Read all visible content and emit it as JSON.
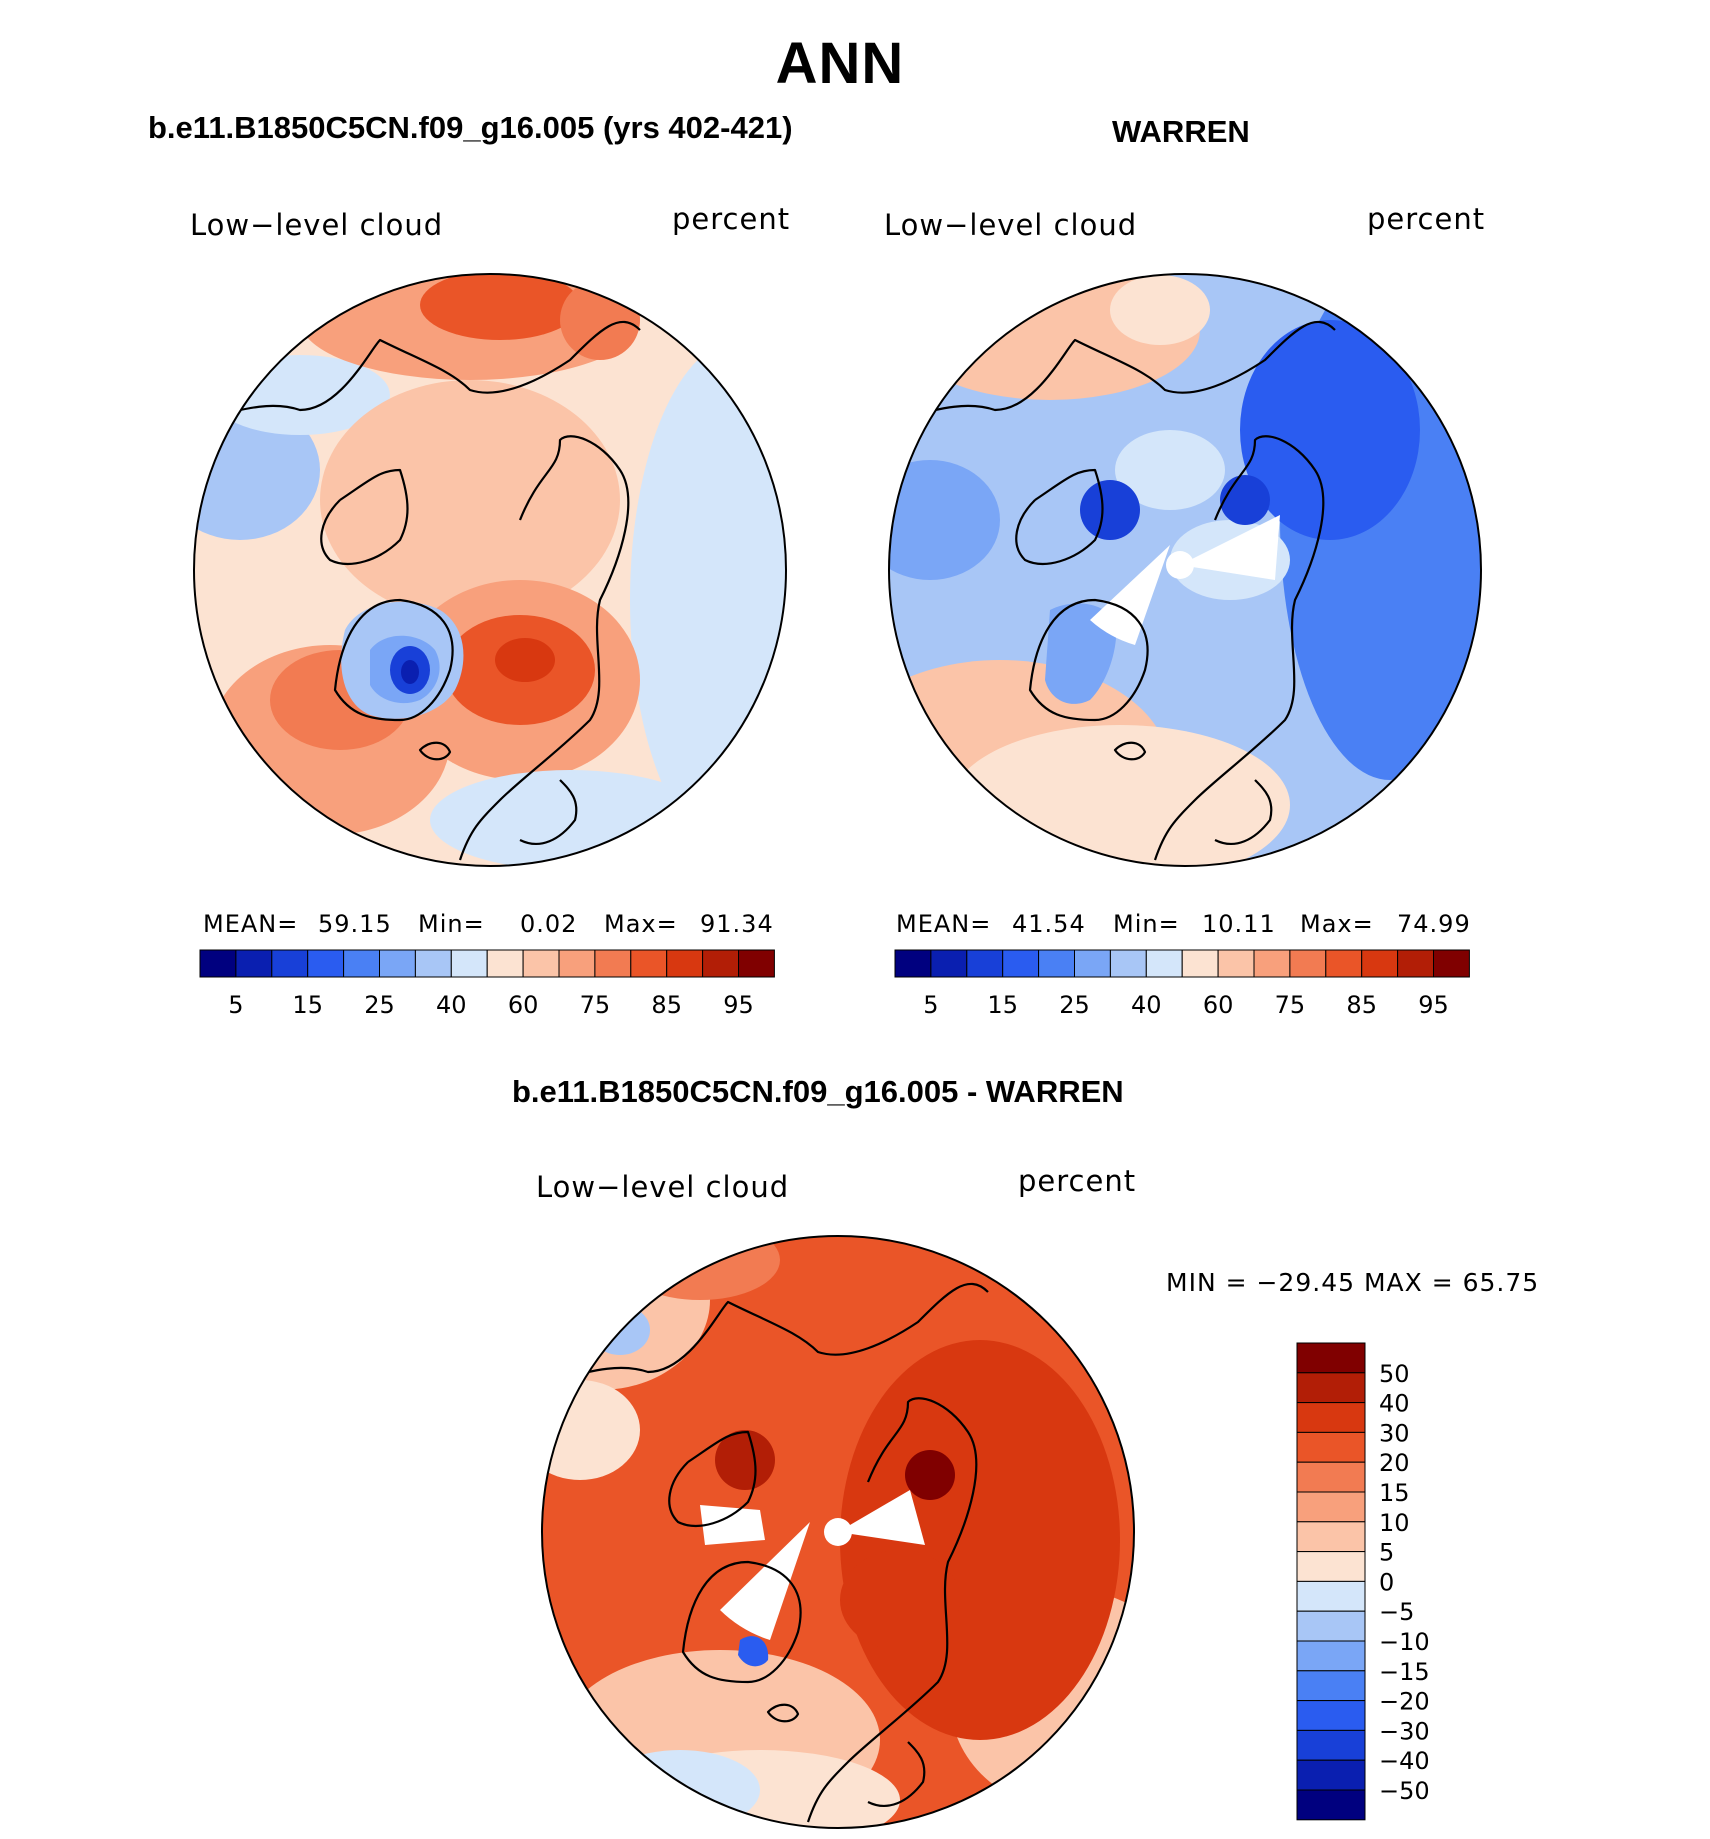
{
  "title": "ANN",
  "panels": [
    {
      "case_title": "b.e11.B1850C5CN.f09_g16.005 (yrs 402-421)",
      "variable": "Low−level cloud",
      "units": "percent",
      "stats": {
        "mean_label": "MEAN=",
        "mean": "59.15",
        "min_label": "Min=",
        "min": "0.02",
        "max_label": "Max=",
        "max": "91.34"
      }
    },
    {
      "case_title": "WARREN",
      "variable": "Low−level cloud",
      "units": "percent",
      "stats": {
        "mean_label": "MEAN=",
        "mean": "41.54",
        "min_label": "Min=",
        "min": "10.11",
        "max_label": "Max=",
        "max": "74.99"
      }
    },
    {
      "case_title": "b.e11.B1850C5CN.f09_g16.005 - WARREN",
      "variable": "Low−level cloud",
      "units": "percent",
      "stats_line": "MIN = −29.45 MAX =   65.75"
    }
  ],
  "chart_data": [
    {
      "type": "heatmap",
      "projection": "north polar stereographic",
      "title": "b.e11.B1850C5CN.f09_g16.005 (yrs 402-421)",
      "variable": "Low-level cloud",
      "units": "percent",
      "mean": 59.15,
      "min": 0.02,
      "max": 91.34,
      "colorbar": {
        "orientation": "horizontal",
        "levels": [
          5,
          10,
          15,
          20,
          25,
          30,
          40,
          50,
          60,
          70,
          75,
          80,
          85,
          90,
          95
        ],
        "tick_labels": [
          "5",
          "15",
          "25",
          "40",
          "60",
          "75",
          "85",
          "95"
        ],
        "colors": [
          "#00007f",
          "#0a1fb0",
          "#1840d8",
          "#2a5cf0",
          "#4a80f4",
          "#7aa6f6",
          "#a8c6f6",
          "#d4e6fa",
          "#fce3d2",
          "#fbc4a8",
          "#f8a07c",
          "#f27b52",
          "#ea5528",
          "#d83810",
          "#b21e06",
          "#800000"
        ]
      }
    },
    {
      "type": "heatmap",
      "projection": "north polar stereographic",
      "title": "WARREN",
      "variable": "Low-level cloud",
      "units": "percent",
      "mean": 41.54,
      "min": 10.11,
      "max": 74.99,
      "colorbar": {
        "orientation": "horizontal",
        "levels": [
          5,
          10,
          15,
          20,
          25,
          30,
          40,
          50,
          60,
          70,
          75,
          80,
          85,
          90,
          95
        ],
        "tick_labels": [
          "5",
          "15",
          "25",
          "40",
          "60",
          "75",
          "85",
          "95"
        ],
        "colors": [
          "#00007f",
          "#0a1fb0",
          "#1840d8",
          "#2a5cf0",
          "#4a80f4",
          "#7aa6f6",
          "#a8c6f6",
          "#d4e6fa",
          "#fce3d2",
          "#fbc4a8",
          "#f8a07c",
          "#f27b52",
          "#ea5528",
          "#d83810",
          "#b21e06",
          "#800000"
        ]
      }
    },
    {
      "type": "heatmap",
      "projection": "north polar stereographic",
      "title": "b.e11.B1850C5CN.f09_g16.005 - WARREN",
      "variable": "Low-level cloud",
      "units": "percent",
      "min": -29.45,
      "max": 65.75,
      "colorbar": {
        "orientation": "vertical",
        "levels": [
          -50,
          -40,
          -30,
          -20,
          -15,
          -10,
          -5,
          0,
          5,
          10,
          15,
          20,
          30,
          40,
          50
        ],
        "tick_labels": [
          "50",
          "40",
          "30",
          "20",
          "15",
          "10",
          "5",
          "0",
          "−5",
          "−10",
          "−15",
          "−20",
          "−30",
          "−40",
          "−50"
        ],
        "colors": [
          "#800000",
          "#b21e06",
          "#d83810",
          "#ea5528",
          "#f27b52",
          "#f8a07c",
          "#fbc4a8",
          "#fce3d2",
          "#d4e6fa",
          "#a8c6f6",
          "#7aa6f6",
          "#4a80f4",
          "#2a5cf0",
          "#1840d8",
          "#0a1fb0",
          "#00007f"
        ]
      }
    }
  ]
}
